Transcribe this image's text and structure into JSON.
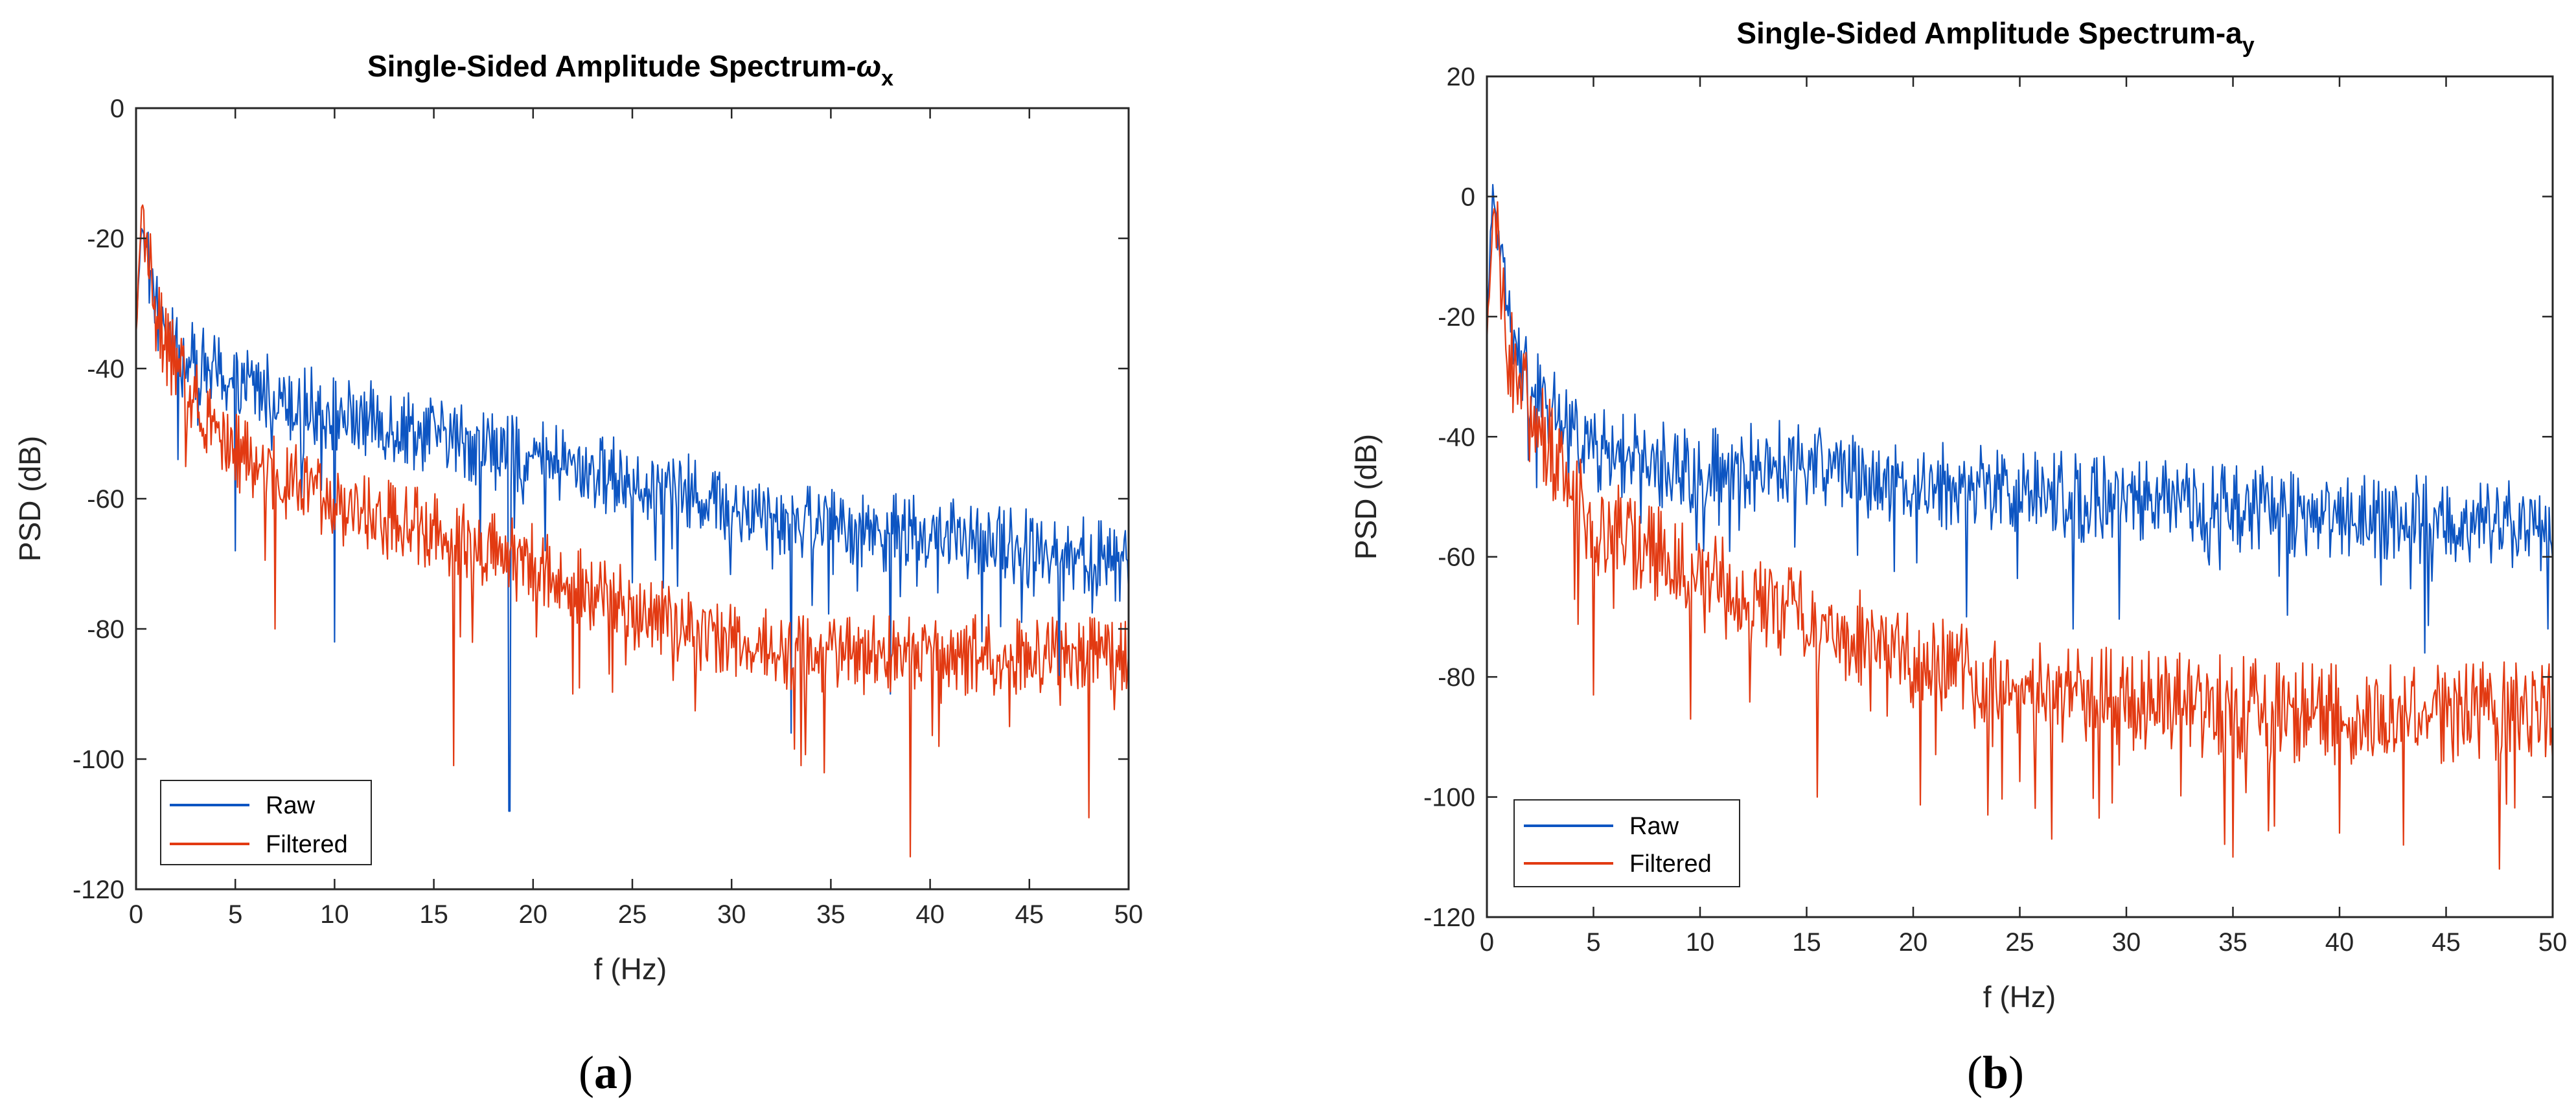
{
  "chart_data": [
    {
      "type": "line",
      "title_main": "Single-Sided Amplitude Spectrum-",
      "title_symbol": "ω",
      "title_subscript": "x",
      "xlabel": "f (Hz)",
      "ylabel": "PSD (dB)",
      "xlim": [
        0,
        50
      ],
      "ylim": [
        -120,
        0
      ],
      "xticks": [
        0,
        5,
        10,
        15,
        20,
        25,
        30,
        35,
        40,
        45,
        50
      ],
      "yticks": [
        0,
        -20,
        -40,
        -60,
        -80,
        -100,
        -120
      ],
      "legend_position": "bottom-left",
      "caption_letter": "a",
      "series": [
        {
          "name": "Raw",
          "color": "#0D55C2",
          "trend_f": [
            0,
            0.3,
            1,
            2,
            5,
            10,
            15,
            20,
            25,
            30,
            35,
            40,
            45,
            50
          ],
          "trend_psd": [
            -34,
            -17,
            -31,
            -38,
            -42,
            -47,
            -50,
            -54,
            -57,
            -61,
            -64,
            -66,
            -67,
            -70
          ],
          "noise_db": 5,
          "spikes": [
            [
              18.8,
              -108
            ],
            [
              10.0,
              -82
            ],
            [
              5.0,
              -68
            ],
            [
              33.0,
              -96
            ],
            [
              38.0,
              -90
            ],
            [
              46.5,
              -88
            ]
          ]
        },
        {
          "name": "Filtered",
          "color": "#E23A12",
          "trend_f": [
            0,
            0.3,
            1,
            2,
            5,
            10,
            15,
            20,
            25,
            30,
            35,
            40,
            45,
            50
          ],
          "trend_psd": [
            -35,
            -14,
            -32,
            -40,
            -53,
            -61,
            -65,
            -70,
            -77,
            -82,
            -84,
            -84,
            -84,
            -84
          ],
          "noise_db": 5,
          "spikes": [
            [
              16.0,
              -101
            ],
            [
              39.0,
              -115
            ],
            [
              33.5,
              -101
            ],
            [
              48.0,
              -109
            ],
            [
              7.0,
              -80
            ],
            [
              22.0,
              -90
            ],
            [
              44.0,
              -95
            ]
          ]
        }
      ]
    },
    {
      "type": "line",
      "title_main": "Single-Sided Amplitude Spectrum-a",
      "title_symbol": "",
      "title_subscript": "y",
      "xlabel": "f (Hz)",
      "ylabel": "PSD (dB)",
      "xlim": [
        0,
        50
      ],
      "ylim": [
        -120,
        20
      ],
      "xticks": [
        0,
        5,
        10,
        15,
        20,
        25,
        30,
        35,
        40,
        45,
        50
      ],
      "yticks": [
        20,
        0,
        -20,
        -40,
        -60,
        -80,
        -100,
        -120
      ],
      "legend_position": "bottom-left",
      "caption_letter": "b",
      "series": [
        {
          "name": "Raw",
          "color": "#0D55C2",
          "trend_f": [
            0,
            0.3,
            1,
            2,
            5,
            10,
            15,
            20,
            25,
            30,
            35,
            40,
            45,
            50
          ],
          "trend_psd": [
            -20,
            2,
            -22,
            -32,
            -42,
            -46,
            -44,
            -48,
            -49,
            -51,
            -52,
            -53,
            -54,
            -55
          ],
          "noise_db": 6,
          "spikes": [
            [
              49.8,
              -72
            ],
            [
              44.0,
              -76
            ],
            [
              22.5,
              -70
            ],
            [
              27.5,
              -72
            ]
          ]
        },
        {
          "name": "Filtered",
          "color": "#E23A12",
          "trend_f": [
            0,
            0.3,
            1,
            2,
            5,
            10,
            15,
            20,
            25,
            30,
            35,
            40,
            45,
            50
          ],
          "trend_psd": [
            -25,
            0,
            -25,
            -36,
            -54,
            -64,
            -70,
            -77,
            -82,
            -84,
            -85,
            -86,
            -86,
            -86
          ],
          "noise_db": 7,
          "spikes": [
            [
              5.0,
              -83
            ],
            [
              15.5,
              -100
            ],
            [
              23.5,
              -103
            ],
            [
              26.5,
              -107
            ],
            [
              35.0,
              -110
            ],
            [
              40.0,
              -106
            ],
            [
              47.5,
              -112
            ],
            [
              43.0,
              -108
            ]
          ]
        }
      ]
    }
  ]
}
